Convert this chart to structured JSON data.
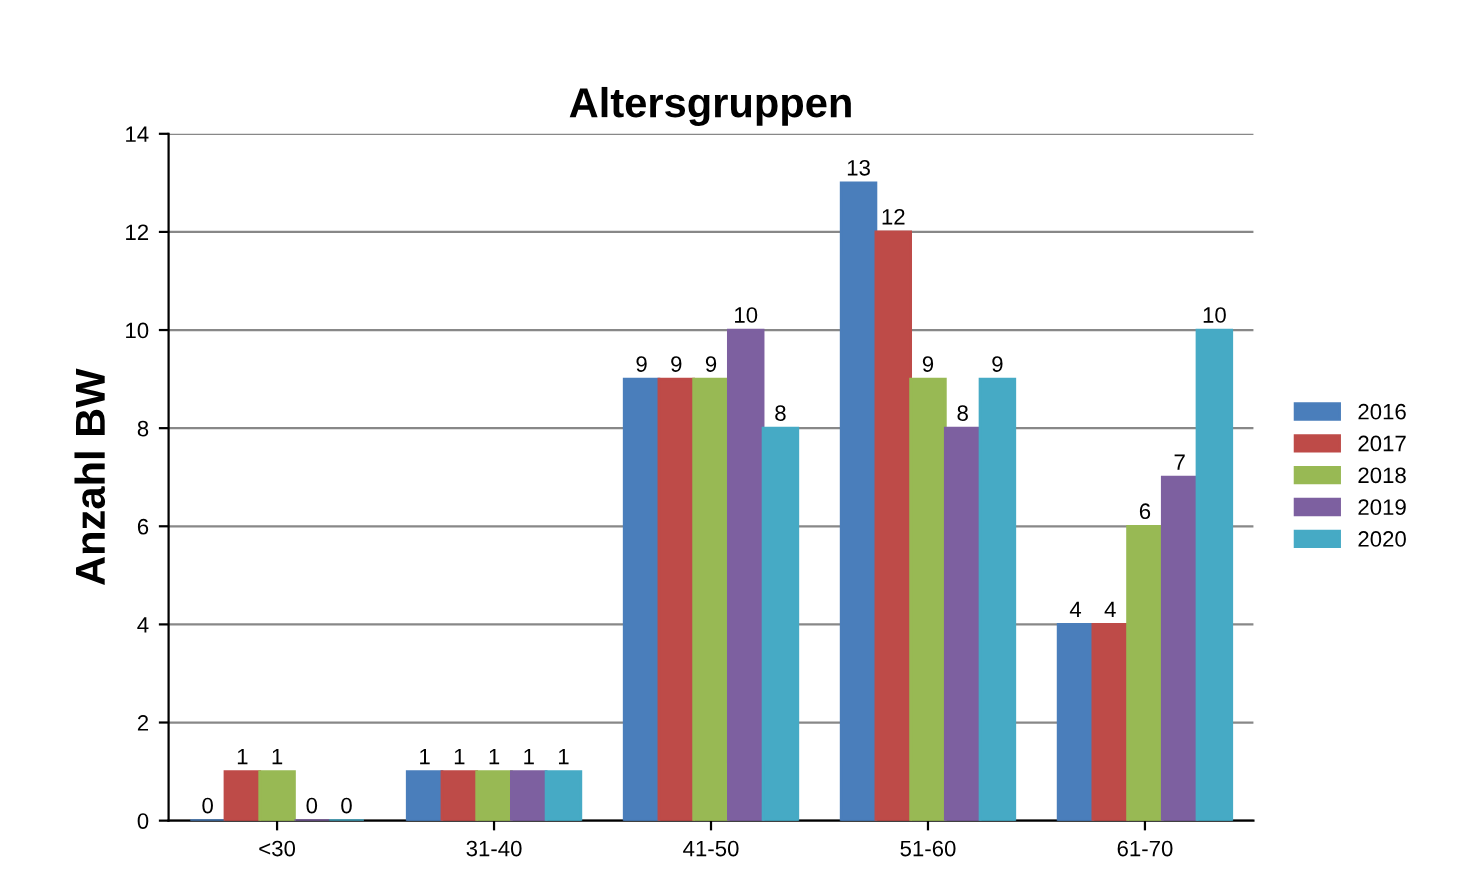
{
  "chart_data": {
    "type": "bar",
    "title": "Altersgruppen",
    "ylabel": "Anzahl BW",
    "categories": [
      "<30",
      "31-40",
      "41-50",
      "51-60",
      "61-70"
    ],
    "series": [
      {
        "name": "2016",
        "color": "#4a7ebb",
        "values": [
          0,
          1,
          9,
          13,
          4
        ]
      },
      {
        "name": "2017",
        "color": "#be4b48",
        "values": [
          1,
          1,
          9,
          12,
          4
        ]
      },
      {
        "name": "2018",
        "color": "#98b954",
        "values": [
          1,
          1,
          9,
          9,
          6
        ]
      },
      {
        "name": "2019",
        "color": "#7d60a0",
        "values": [
          0,
          1,
          10,
          8,
          7
        ]
      },
      {
        "name": "2020",
        "color": "#46aac5",
        "values": [
          0,
          1,
          8,
          9,
          10
        ]
      }
    ],
    "ylim": [
      0,
      14
    ],
    "yticks": [
      0,
      2,
      4,
      6,
      8,
      10,
      12,
      14
    ],
    "grid": "y",
    "legend": "right",
    "data_labels": true
  }
}
